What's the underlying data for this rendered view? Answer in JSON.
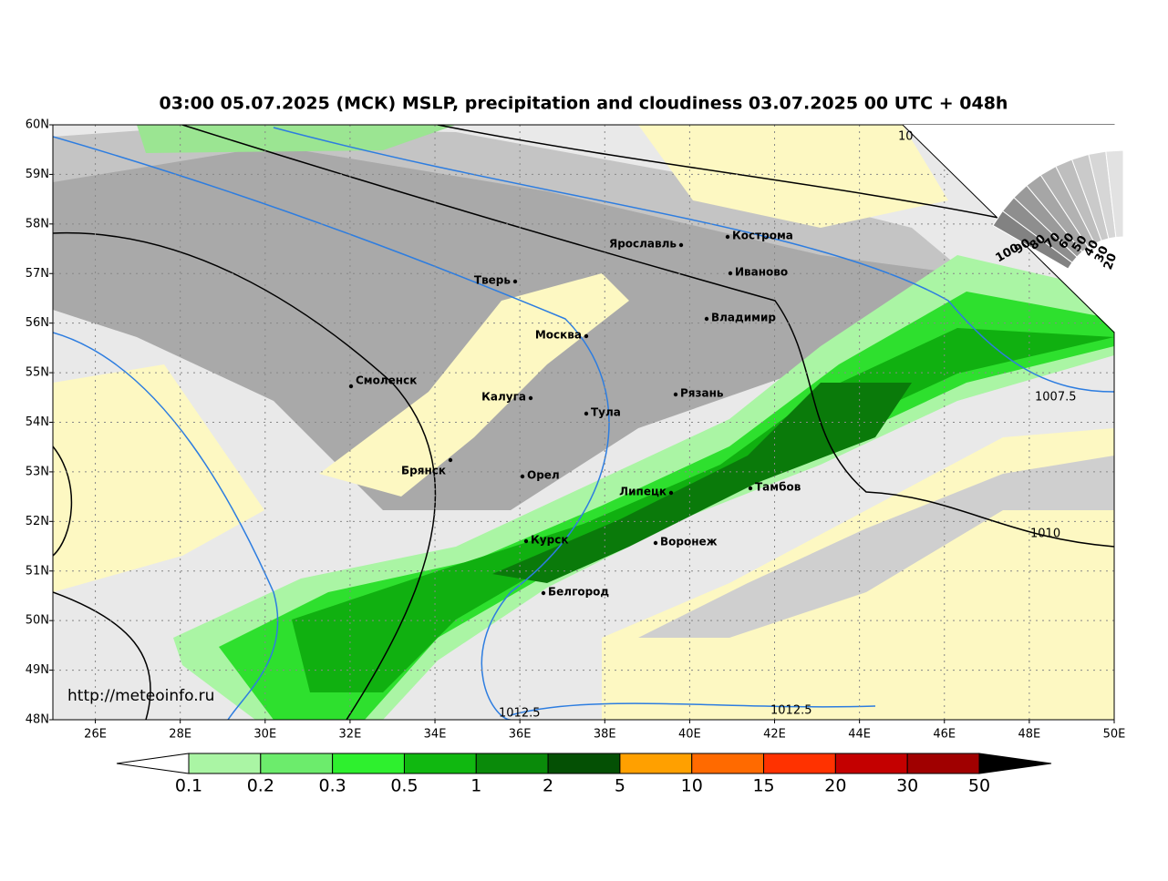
{
  "title": "03:00 05.07.2025 (МСК) MSLP, precipitation and cloudiness 03.07.2025 00 UTC + 048h",
  "url": "http://meteoinfo.ru",
  "lat_labels": [
    "60N",
    "59N",
    "58N",
    "57N",
    "56N",
    "55N",
    "54N",
    "53N",
    "52N",
    "51N",
    "50N",
    "49N",
    "48N"
  ],
  "lon_labels": [
    "26E",
    "28E",
    "30E",
    "32E",
    "34E",
    "36E",
    "38E",
    "40E",
    "42E",
    "44E",
    "46E",
    "48E",
    "50E"
  ],
  "cities": [
    {
      "name": "Ярославль"
    },
    {
      "name": "Кострома"
    },
    {
      "name": "Иваново"
    },
    {
      "name": "Тверь"
    },
    {
      "name": "Москва"
    },
    {
      "name": "Владимир"
    },
    {
      "name": "Смоленск"
    },
    {
      "name": "Калуга"
    },
    {
      "name": "Рязань"
    },
    {
      "name": "Тула"
    },
    {
      "name": "Брянск"
    },
    {
      "name": "Орел"
    },
    {
      "name": "Липецк"
    },
    {
      "name": "Тамбов"
    },
    {
      "name": "Курск"
    },
    {
      "name": "Воронеж"
    },
    {
      "name": "Белгород"
    }
  ],
  "isobar_labels": [
    "10",
    "1007.5",
    "1010",
    "1012.5",
    "1012.5"
  ],
  "colorbar": {
    "labels": [
      "0.1",
      "0.2",
      "0.3",
      "0.5",
      "1",
      "2",
      "5",
      "10",
      "15",
      "20",
      "30",
      "50"
    ],
    "colors": [
      "#aaf5a4",
      "#6cec6c",
      "#2ef02e",
      "#10b810",
      "#0a8a0a",
      "#045004",
      "#ffa000",
      "#ff6a00",
      "#ff3200",
      "#c40000",
      "#a00000"
    ]
  },
  "cloud_scale": {
    "labels": [
      "100",
      "90",
      "80",
      "70",
      "60",
      "50",
      "40",
      "30",
      "20"
    ]
  }
}
